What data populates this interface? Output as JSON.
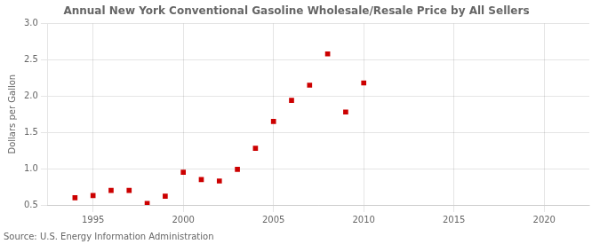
{
  "chart_data": {
    "type": "scatter",
    "title": "Annual New York Conventional Gasoline Wholesale/Resale Price by All Sellers",
    "ylabel": "Dollars per Gallon",
    "source": "Source: U.S. Energy Information Administration",
    "x": [
      1994,
      1995,
      1996,
      1997,
      1998,
      1999,
      2000,
      2001,
      2002,
      2003,
      2004,
      2005,
      2006,
      2007,
      2008,
      2009,
      2010
    ],
    "values": [
      0.6,
      0.63,
      0.7,
      0.7,
      0.52,
      0.62,
      0.95,
      0.85,
      0.83,
      0.99,
      1.28,
      1.65,
      1.94,
      2.15,
      2.58,
      1.78,
      2.18
    ],
    "color": "#cc0000",
    "marker": "square",
    "xlim": [
      1992.5,
      2022.5
    ],
    "xticks": [
      1995,
      2000,
      2005,
      2010,
      2015,
      2020
    ],
    "ylim": [
      0.5,
      3.0
    ],
    "yticks": [
      0.5,
      {
        "value": 1.0,
        "label": "1.0"
      },
      1.5,
      {
        "value": 2.0,
        "label": "2.0"
      },
      2.5,
      {
        "value": 3.0,
        "label": "3.0"
      }
    ],
    "grid": true
  }
}
